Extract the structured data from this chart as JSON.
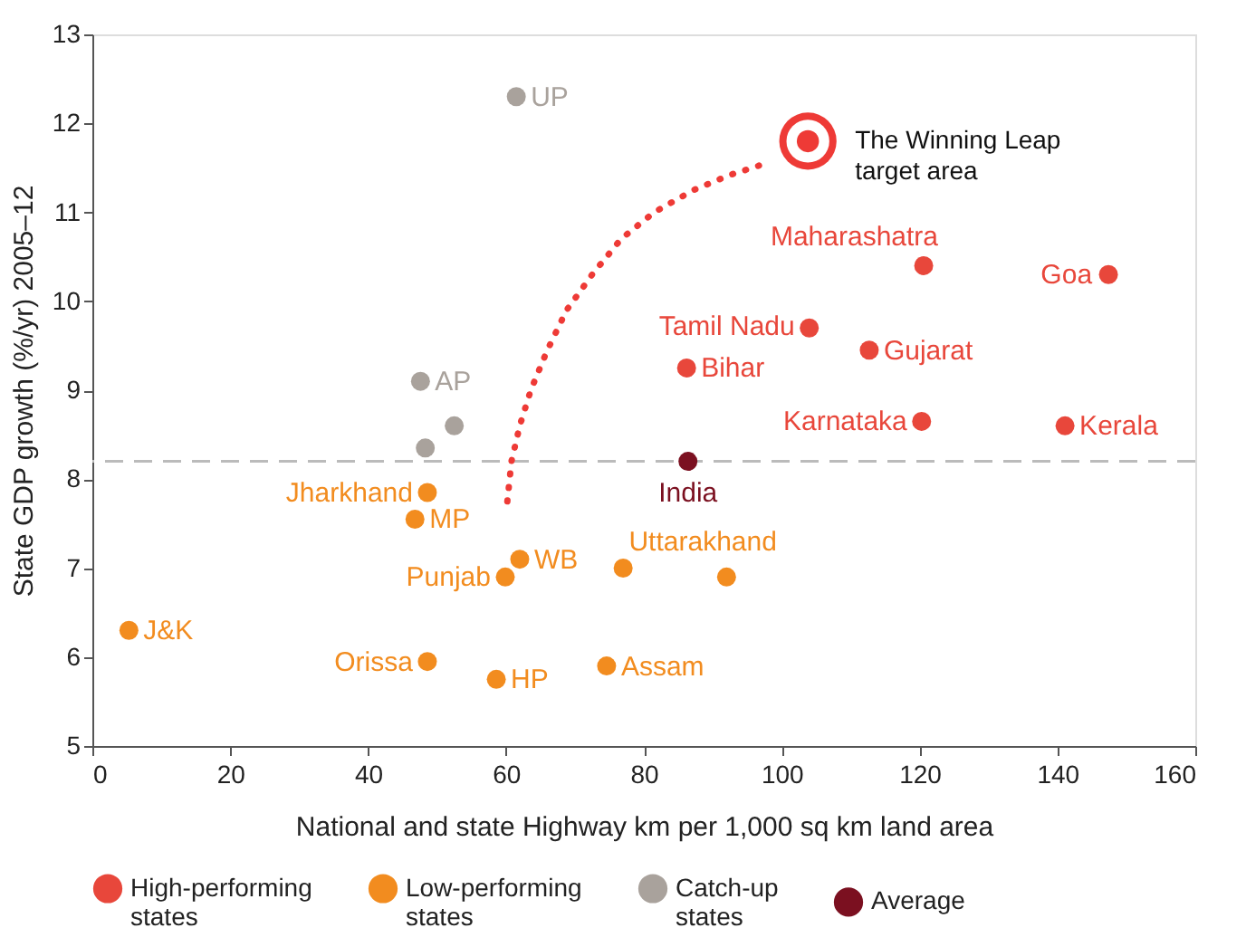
{
  "chart_data": {
    "type": "scatter",
    "xlabel": "National and state Highway km per 1,000 sq km land area",
    "ylabel": "State GDP growth (%/yr) 2005–12",
    "xlim": [
      0,
      160
    ],
    "xticks": [
      0,
      20,
      40,
      60,
      80,
      100,
      120,
      140,
      160
    ],
    "ylim": [
      5,
      13
    ],
    "yticks": [
      5,
      6,
      7,
      8,
      9,
      10,
      11,
      12,
      13
    ],
    "grid": false,
    "legend": "bottom",
    "marker": "circle",
    "series": [
      {
        "name": "High-performing states",
        "color": "#e8473b",
        "x": [
          120.6,
          147.4,
          104,
          112.7,
          86.2,
          120.3,
          141.1
        ],
        "values": [
          10.4,
          10.3,
          9.7,
          9.45,
          9.25,
          8.65,
          8.6
        ]
      },
      {
        "name": "Low-performing states",
        "color": "#f28c1f",
        "x": [
          48.6,
          46.8,
          62,
          59.9,
          77,
          92,
          5.3,
          48.6,
          58.6,
          74.6
        ],
        "values": [
          7.85,
          7.55,
          7.1,
          6.9,
          7.0,
          6.9,
          6.3,
          5.95,
          5.75,
          5.9
        ]
      },
      {
        "name": "Catch-up states",
        "color": "#a9a29c",
        "x": [
          61.5,
          47.6,
          52.5,
          48.3
        ],
        "values": [
          12.3,
          9.1,
          8.6,
          8.35
        ]
      },
      {
        "name": "Average",
        "color": "#7b1020",
        "x": [
          86.4
        ],
        "values": [
          8.2
        ]
      },
      {
        "type": "line",
        "color": "#ee3a36",
        "line_style": "dotted",
        "marker": "none",
        "x": [
          60.2,
          60.8,
          62,
          63.6,
          66,
          68.8,
          72.5,
          76.7,
          81.5,
          87.2,
          92.5,
          97.7
        ],
        "values": [
          7.75,
          8.2,
          8.6,
          9.0,
          9.45,
          9.9,
          10.3,
          10.7,
          11.0,
          11.25,
          11.42,
          11.55
        ]
      }
    ],
    "ref_lines": [
      {
        "axis": "y",
        "value": 8.2,
        "color": "#bbbbbb",
        "line_style": "dashed"
      }
    ],
    "annotations": [
      {
        "text": "UP",
        "x": 61.5,
        "y": 12.3
      },
      {
        "text": "AP",
        "x": 47.6,
        "y": 9.1
      },
      {
        "text": "Maharashatra",
        "x": 120.6,
        "y": 10.4
      },
      {
        "text": "Goa",
        "x": 147.4,
        "y": 10.3
      },
      {
        "text": "Tamil Nadu",
        "x": 104,
        "y": 9.7
      },
      {
        "text": "Gujarat",
        "x": 112.7,
        "y": 9.45
      },
      {
        "text": "Bihar",
        "x": 86.2,
        "y": 9.25
      },
      {
        "text": "Karnataka",
        "x": 120.3,
        "y": 8.65
      },
      {
        "text": "Kerala",
        "x": 141.1,
        "y": 8.6
      },
      {
        "text": "India",
        "x": 86.4,
        "y": 8.2
      },
      {
        "text": "Jharkhand",
        "x": 48.6,
        "y": 7.85
      },
      {
        "text": "MP",
        "x": 46.8,
        "y": 7.55
      },
      {
        "text": "WB",
        "x": 62,
        "y": 7.1
      },
      {
        "text": "Punjab",
        "x": 59.9,
        "y": 6.9
      },
      {
        "text": "Uttarakhand",
        "x": 77,
        "y": 7.0
      },
      {
        "text": "J&K",
        "x": 5.3,
        "y": 6.3
      },
      {
        "text": "Orissa",
        "x": 48.6,
        "y": 5.95
      },
      {
        "text": "HP",
        "x": 58.6,
        "y": 5.75
      },
      {
        "text": "Assam",
        "x": 74.6,
        "y": 5.9
      },
      {
        "text": "The Winning Leap\ntarget area",
        "x": 103.8,
        "y": 11.8
      }
    ]
  }
}
